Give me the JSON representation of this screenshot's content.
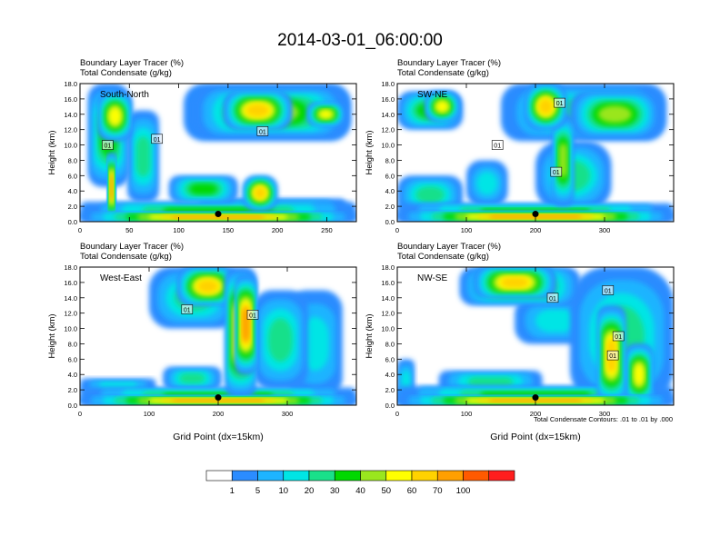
{
  "figure_title": "2014-03-01_06:00:00",
  "footnote": "Total Condensate Contours: .01 to .01 by .000",
  "xlabel": "Grid Point (dx=15km)",
  "ylabel": "Height (km)",
  "colors": {
    "levels": [
      "#ffffff",
      "#2b8cff",
      "#1eb4ff",
      "#00e5e5",
      "#19e08a",
      "#00d800",
      "#9ae61e",
      "#ffff00",
      "#ffd200",
      "#ff9f00",
      "#ff5a00",
      "#ff1e1e"
    ],
    "background": "#ffffff",
    "contour": "#000000"
  },
  "chart_data": [
    {
      "type": "heatmap",
      "name": "South-North",
      "title_line1": "Boundary Layer Tracer   (%)",
      "title_line2": "Total Condensate   (g/kg)",
      "panel_label": "South-North",
      "xlim": [
        0,
        280
      ],
      "ylim": [
        0,
        18
      ],
      "xticks": [
        0,
        50,
        100,
        150,
        200,
        250
      ],
      "yticks": [
        "0.0",
        "2.0",
        "4.0",
        "6.0",
        "8.0",
        "10.0",
        "12.0",
        "14.0",
        "16.0",
        "18.0"
      ],
      "marker": {
        "x": 140,
        "y": 1.0
      },
      "contour_labels": [
        {
          "text": "01",
          "x": 28,
          "y": 10.0
        },
        {
          "text": "01",
          "x": 78,
          "y": 10.8
        },
        {
          "text": "01",
          "x": 185,
          "y": 11.8
        }
      ],
      "blobs": [
        {
          "x": 0,
          "y": 0,
          "w": 280,
          "h": 1.2,
          "v": 75
        },
        {
          "x": 0,
          "y": 0,
          "w": 280,
          "h": 2.6,
          "v": 30
        },
        {
          "x": 120,
          "y": 0.5,
          "w": 150,
          "h": 2.5,
          "v": 25
        },
        {
          "x": 8,
          "y": 4.5,
          "w": 42,
          "h": 13.5,
          "v": 30
        },
        {
          "x": 18,
          "y": 10.5,
          "w": 35,
          "h": 6.5,
          "v": 55
        },
        {
          "x": 28,
          "y": 0,
          "w": 8,
          "h": 9,
          "v": 70
        },
        {
          "x": 48,
          "y": 2.5,
          "w": 32,
          "h": 12,
          "v": 20
        },
        {
          "x": 105,
          "y": 10.5,
          "w": 170,
          "h": 7.5,
          "v": 15
        },
        {
          "x": 115,
          "y": 11,
          "w": 155,
          "h": 6.5,
          "v": 40
        },
        {
          "x": 145,
          "y": 12,
          "w": 70,
          "h": 5,
          "v": 65
        },
        {
          "x": 230,
          "y": 12.5,
          "w": 38,
          "h": 3,
          "v": 55
        },
        {
          "x": 165,
          "y": 1.5,
          "w": 35,
          "h": 4.5,
          "v": 60
        },
        {
          "x": 90,
          "y": 2.5,
          "w": 70,
          "h": 3.5,
          "v": 30
        }
      ]
    },
    {
      "type": "heatmap",
      "name": "SW-NE",
      "title_line1": "Boundary Layer Tracer   (%)",
      "title_line2": "Total Condensate   (g/kg)",
      "panel_label": "SW-NE",
      "xlim": [
        0,
        400
      ],
      "ylim": [
        0,
        18
      ],
      "xticks": [
        0,
        100,
        200,
        300
      ],
      "yticks": [
        "0.0",
        "2.0",
        "4.0",
        "6.0",
        "8.0",
        "10.0",
        "12.0",
        "14.0",
        "16.0",
        "18.0"
      ],
      "marker": {
        "x": 200,
        "y": 1.0
      },
      "contour_labels": [
        {
          "text": "01",
          "x": 145,
          "y": 10.0
        },
        {
          "text": "01",
          "x": 235,
          "y": 15.5
        },
        {
          "text": "01",
          "x": 230,
          "y": 6.5
        }
      ],
      "blobs": [
        {
          "x": 0,
          "y": 0,
          "w": 400,
          "h": 1.3,
          "v": 75
        },
        {
          "x": 0,
          "y": 0,
          "w": 400,
          "h": 2.4,
          "v": 30
        },
        {
          "x": 0,
          "y": 12,
          "w": 95,
          "h": 5,
          "v": 30
        },
        {
          "x": 40,
          "y": 13,
          "w": 50,
          "h": 4,
          "v": 50
        },
        {
          "x": 0,
          "y": 1,
          "w": 95,
          "h": 5,
          "v": 20
        },
        {
          "x": 100,
          "y": 2,
          "w": 60,
          "h": 6,
          "v": 15
        },
        {
          "x": 150,
          "y": 10.5,
          "w": 240,
          "h": 7.5,
          "v": 20
        },
        {
          "x": 185,
          "y": 12,
          "w": 60,
          "h": 6,
          "v": 65
        },
        {
          "x": 250,
          "y": 11,
          "w": 130,
          "h": 6,
          "v": 40
        },
        {
          "x": 200,
          "y": 1.5,
          "w": 110,
          "h": 9,
          "v": 25
        },
        {
          "x": 225,
          "y": 2,
          "w": 30,
          "h": 12,
          "v": 45
        }
      ]
    },
    {
      "type": "heatmap",
      "name": "West-East",
      "title_line1": "Boundary Layer Tracer   (%)",
      "title_line2": "Total Condensate   (g/kg)",
      "panel_label": "West-East",
      "xlim": [
        0,
        400
      ],
      "ylim": [
        0,
        18
      ],
      "xticks": [
        0,
        100,
        200,
        300
      ],
      "yticks": [
        "0.0",
        "2.0",
        "4.0",
        "6.0",
        "8.0",
        "10.0",
        "12.0",
        "14.0",
        "16.0",
        "18.0"
      ],
      "marker": {
        "x": 200,
        "y": 1.0
      },
      "contour_labels": [
        {
          "text": "01",
          "x": 155,
          "y": 12.5
        },
        {
          "text": "01",
          "x": 250,
          "y": 11.8
        }
      ],
      "blobs": [
        {
          "x": 0,
          "y": 0,
          "w": 400,
          "h": 1.2,
          "v": 75
        },
        {
          "x": 0,
          "y": 0,
          "w": 400,
          "h": 2.3,
          "v": 30
        },
        {
          "x": 0,
          "y": 1.5,
          "w": 110,
          "h": 2,
          "v": 10
        },
        {
          "x": 100,
          "y": 10,
          "w": 130,
          "h": 8,
          "v": 25
        },
        {
          "x": 140,
          "y": 13,
          "w": 90,
          "h": 5,
          "v": 60
        },
        {
          "x": 210,
          "y": 1,
          "w": 45,
          "h": 17,
          "v": 65
        },
        {
          "x": 225,
          "y": 4,
          "w": 30,
          "h": 13,
          "v": 75
        },
        {
          "x": 250,
          "y": 2,
          "w": 80,
          "h": 13,
          "v": 20
        },
        {
          "x": 300,
          "y": 1,
          "w": 80,
          "h": 14,
          "v": 10
        },
        {
          "x": 120,
          "y": 2,
          "w": 85,
          "h": 3,
          "v": 20
        }
      ]
    },
    {
      "type": "heatmap",
      "name": "NW-SE",
      "title_line1": "Boundary Layer Tracer   (%)",
      "title_line2": "Total Condensate   (g/kg)",
      "panel_label": "NW-SE",
      "xlim": [
        0,
        400
      ],
      "ylim": [
        0,
        18
      ],
      "xticks": [
        0,
        100,
        200,
        300
      ],
      "yticks": [
        "0.0",
        "2.0",
        "4.0",
        "6.0",
        "8.0",
        "10.0",
        "12.0",
        "14.0",
        "16.0",
        "18.0"
      ],
      "marker": {
        "x": 200,
        "y": 1.0
      },
      "contour_labels": [
        {
          "text": "01",
          "x": 225,
          "y": 14.0
        },
        {
          "text": "01",
          "x": 305,
          "y": 15.0
        },
        {
          "text": "01",
          "x": 320,
          "y": 9.0
        },
        {
          "text": "01",
          "x": 312,
          "y": 6.5
        }
      ],
      "blobs": [
        {
          "x": 0,
          "y": 0,
          "w": 400,
          "h": 1.2,
          "v": 75
        },
        {
          "x": 0,
          "y": 0,
          "w": 400,
          "h": 2.5,
          "v": 30
        },
        {
          "x": 0,
          "y": 0,
          "w": 25,
          "h": 6,
          "v": 15
        },
        {
          "x": 60,
          "y": 1.5,
          "w": 150,
          "h": 3,
          "v": 25
        },
        {
          "x": 90,
          "y": 13,
          "w": 175,
          "h": 5,
          "v": 40
        },
        {
          "x": 110,
          "y": 14,
          "w": 120,
          "h": 4,
          "v": 65
        },
        {
          "x": 170,
          "y": 8,
          "w": 120,
          "h": 6,
          "v": 15
        },
        {
          "x": 250,
          "y": 0,
          "w": 150,
          "h": 18,
          "v": 20
        },
        {
          "x": 290,
          "y": 0,
          "w": 40,
          "h": 13,
          "v": 60
        },
        {
          "x": 330,
          "y": 0,
          "w": 40,
          "h": 8,
          "v": 55
        }
      ]
    }
  ],
  "colorbar": {
    "labels": [
      "1",
      "5",
      "10",
      "20",
      "30",
      "40",
      "50",
      "60",
      "70",
      "100"
    ]
  }
}
